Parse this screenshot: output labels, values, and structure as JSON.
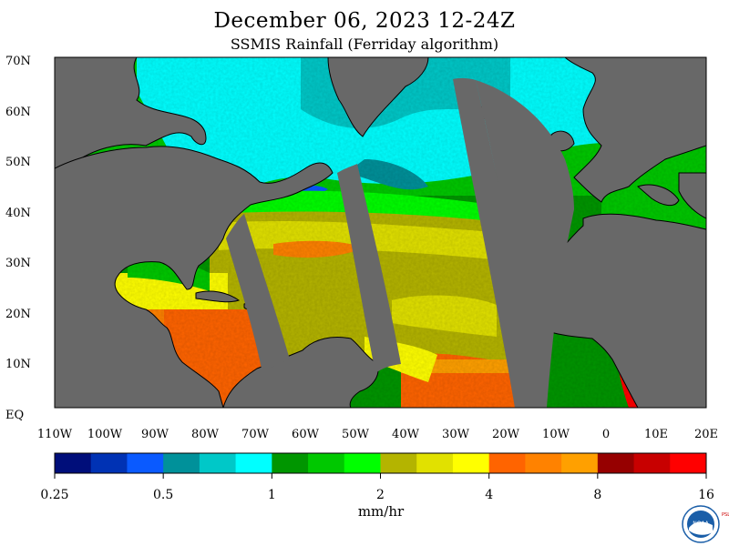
{
  "title": "December 06, 2023 12-24Z",
  "subtitle": "SSMIS Rainfall (Ferriday algorithm)",
  "lat_labels": [
    "70N",
    "60N",
    "50N",
    "40N",
    "30N",
    "20N",
    "10N",
    "EQ"
  ],
  "lon_labels": [
    "110W",
    "100W",
    "90W",
    "80W",
    "70W",
    "60W",
    "50W",
    "40W",
    "30W",
    "20W",
    "10W",
    "0",
    "10E",
    "20E"
  ],
  "colorbar": {
    "colors": [
      "#000e7a",
      "#0032b4",
      "#0a5aff",
      "#00919a",
      "#00c8c8",
      "#00ffff",
      "#009600",
      "#00c800",
      "#00ff00",
      "#b4b400",
      "#e1e100",
      "#ffff00",
      "#ff6400",
      "#ff8200",
      "#ffa000",
      "#960000",
      "#c80000",
      "#ff0000"
    ],
    "tick_labels": [
      "0.25",
      "0.5",
      "1",
      "2",
      "4",
      "8",
      "16"
    ],
    "unit": "mm/hr"
  },
  "logo": {
    "name": "NOAA",
    "side_text": "PSL"
  },
  "colors": {
    "land": "#686868",
    "no_data_swath": "#686868"
  }
}
